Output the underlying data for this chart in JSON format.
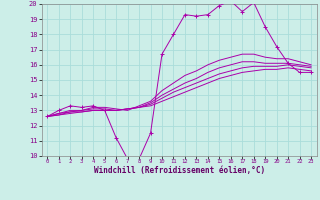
{
  "xlabel": "Windchill (Refroidissement éolien,°C)",
  "ylabel": "",
  "bg_color": "#cceee8",
  "grid_color": "#aaddda",
  "line_color": "#aa00aa",
  "xlim": [
    -0.5,
    23.5
  ],
  "ylim": [
    10,
    20
  ],
  "xticks": [
    0,
    1,
    2,
    3,
    4,
    5,
    6,
    7,
    8,
    9,
    10,
    11,
    12,
    13,
    14,
    15,
    16,
    17,
    18,
    19,
    20,
    21,
    22,
    23
  ],
  "yticks": [
    10,
    11,
    12,
    13,
    14,
    15,
    16,
    17,
    18,
    19,
    20
  ],
  "series": [
    {
      "x": [
        0,
        1,
        2,
        3,
        4,
        5,
        6,
        7,
        8,
        9,
        10,
        11,
        12,
        13,
        14,
        15,
        16,
        17,
        18,
        19,
        20,
        21,
        22,
        23
      ],
      "y": [
        12.6,
        13.0,
        13.3,
        13.2,
        13.3,
        13.0,
        11.2,
        9.8,
        9.8,
        11.5,
        16.7,
        18.0,
        19.3,
        19.2,
        19.3,
        19.9,
        20.2,
        19.5,
        20.1,
        18.5,
        17.2,
        16.1,
        15.5,
        15.5
      ],
      "marker": true
    },
    {
      "x": [
        0,
        1,
        2,
        3,
        4,
        5,
        6,
        7,
        8,
        9,
        10,
        11,
        12,
        13,
        14,
        15,
        16,
        17,
        18,
        19,
        20,
        21,
        22,
        23
      ],
      "y": [
        12.6,
        12.7,
        12.8,
        12.9,
        13.0,
        13.0,
        13.0,
        13.1,
        13.2,
        13.3,
        13.6,
        13.9,
        14.2,
        14.5,
        14.8,
        15.1,
        15.3,
        15.5,
        15.6,
        15.7,
        15.7,
        15.8,
        15.7,
        15.6
      ],
      "marker": false
    },
    {
      "x": [
        0,
        1,
        2,
        3,
        4,
        5,
        6,
        7,
        8,
        9,
        10,
        11,
        12,
        13,
        14,
        15,
        16,
        17,
        18,
        19,
        20,
        21,
        22,
        23
      ],
      "y": [
        12.6,
        12.7,
        12.9,
        12.9,
        13.0,
        13.0,
        13.0,
        13.1,
        13.2,
        13.4,
        13.8,
        14.2,
        14.5,
        14.8,
        15.1,
        15.4,
        15.6,
        15.8,
        15.9,
        15.9,
        15.9,
        16.0,
        15.9,
        15.8
      ],
      "marker": false
    },
    {
      "x": [
        0,
        1,
        2,
        3,
        4,
        5,
        6,
        7,
        8,
        9,
        10,
        11,
        12,
        13,
        14,
        15,
        16,
        17,
        18,
        19,
        20,
        21,
        22,
        23
      ],
      "y": [
        12.6,
        12.8,
        12.9,
        13.0,
        13.1,
        13.1,
        13.0,
        13.1,
        13.2,
        13.5,
        14.0,
        14.4,
        14.8,
        15.1,
        15.5,
        15.8,
        16.0,
        16.2,
        16.2,
        16.1,
        16.1,
        16.1,
        16.0,
        15.9
      ],
      "marker": false
    },
    {
      "x": [
        0,
        1,
        2,
        3,
        4,
        5,
        6,
        7,
        8,
        9,
        10,
        11,
        12,
        13,
        14,
        15,
        16,
        17,
        18,
        19,
        20,
        21,
        22,
        23
      ],
      "y": [
        12.6,
        12.8,
        13.0,
        13.0,
        13.2,
        13.2,
        13.1,
        13.0,
        13.3,
        13.6,
        14.3,
        14.8,
        15.3,
        15.6,
        16.0,
        16.3,
        16.5,
        16.7,
        16.7,
        16.5,
        16.4,
        16.4,
        16.2,
        16.0
      ],
      "marker": false
    }
  ]
}
